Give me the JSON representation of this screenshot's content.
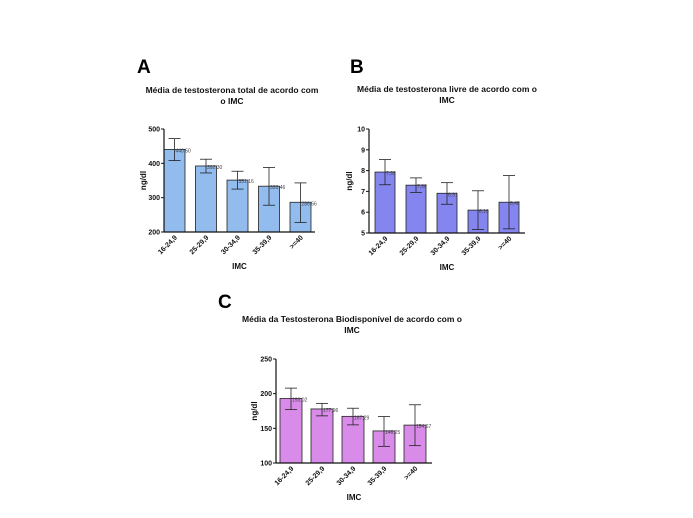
{
  "chart_data": [
    {
      "panel": "A",
      "type": "bar",
      "title": "Média de testosterona total de acordo com o IMC",
      "title_lines": [
        "Média de testosterona total de acordo com",
        "o IMC"
      ],
      "xlabel": "IMC",
      "ylabel": "ng/dl",
      "categories": [
        "16-24,9",
        "25-29,9",
        "30-34,9",
        "35-39,9",
        ">=40"
      ],
      "values": [
        440.5,
        392.3,
        351.16,
        333.46,
        286.56
      ],
      "data_labels": [
        "440,50",
        "392,30",
        "351,16",
        "333,46",
        "286,56"
      ],
      "error_low": [
        408,
        372,
        325,
        278,
        228
      ],
      "error_high": [
        472,
        412,
        377,
        388,
        343
      ],
      "ylim": [
        200,
        500
      ],
      "yticks": [
        200,
        300,
        400,
        500
      ],
      "grid": false,
      "color": "#92bbee"
    },
    {
      "panel": "B",
      "type": "bar",
      "title": "Média de testosterona livre de acordo com o IMC",
      "title_lines": [
        "Média de testosterona livre de acordo com o",
        "IMC"
      ],
      "xlabel": "IMC",
      "ylabel": "ng/dl",
      "categories": [
        "16-24,9",
        "25-29,9",
        "30-34,9",
        "35-39,9",
        ">=40"
      ],
      "values": [
        7.93,
        7.3,
        6.91,
        6.1,
        6.48
      ],
      "data_labels": [
        "7,93",
        "7,30",
        "6,91",
        "6,10",
        "6,48"
      ],
      "error_low": [
        7.32,
        6.95,
        6.38,
        5.17,
        5.2
      ],
      "error_high": [
        8.53,
        7.65,
        7.42,
        7.03,
        7.76
      ],
      "ylim": [
        5,
        10
      ],
      "yticks": [
        5,
        6,
        7,
        8,
        9,
        10
      ],
      "grid": false,
      "color": "#8585ef"
    },
    {
      "panel": "C",
      "type": "bar",
      "title": "Média da Testosterona Biodisponível de acordo com o IMC",
      "title_lines": [
        "Média da Testosterona Biodisponível de acordo com o",
        "IMC"
      ],
      "xlabel": "IMC",
      "ylabel": "ng/dl",
      "categories": [
        "16-24,9",
        "25-29,9",
        "30-34,9",
        "35-39,9",
        ">=40"
      ],
      "values": [
        193.02,
        177.96,
        167.29,
        146.25,
        154.67
      ],
      "data_labels": [
        "193,02",
        "177,96",
        "167,29",
        "146,25",
        "154,67"
      ],
      "error_low": [
        177,
        168,
        155,
        124,
        125
      ],
      "error_high": [
        208,
        186,
        179,
        167,
        184
      ],
      "ylim": [
        100,
        250
      ],
      "yticks": [
        100,
        150,
        200,
        250
      ],
      "grid": false,
      "color": "#d98be9"
    }
  ]
}
